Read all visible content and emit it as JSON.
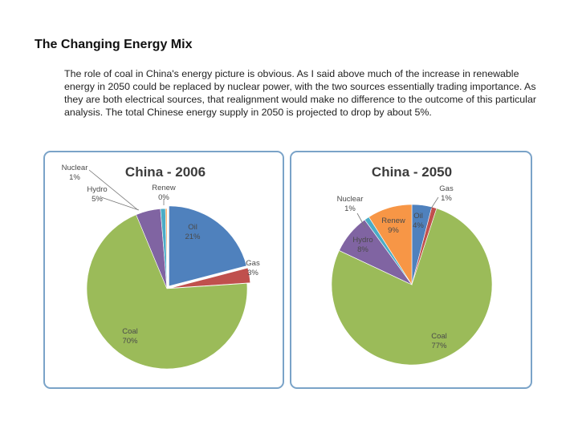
{
  "page": {
    "title": "The Changing Energy Mix",
    "paragraph": "The role of coal in China's energy picture is obvious. As I said above much of the increase in renewable energy in 2050 could be replaced by nuclear power, with the two sources essentially trading importance. As they are both electrical sources, that realignment would make no difference to the outcome of this particular analysis. The total Chinese energy supply in 2050 is projected to drop by about 5%."
  },
  "colors": {
    "Oil": "#4f81bd",
    "Gas": "#c0504d",
    "Coal": "#9bbb59",
    "Hydro": "#8064a2",
    "Nuclear": "#4bacc6",
    "Renew": "#f79646"
  },
  "chart_data": [
    {
      "type": "pie",
      "title": "China - 2006",
      "slices": [
        {
          "name": "Oil",
          "value": 21,
          "label": "21%"
        },
        {
          "name": "Gas",
          "value": 3,
          "label": "3%"
        },
        {
          "name": "Coal",
          "value": 70,
          "label": "70%"
        },
        {
          "name": "Hydro",
          "value": 5,
          "label": "5%"
        },
        {
          "name": "Nuclear",
          "value": 1,
          "label": "1%"
        },
        {
          "name": "Renew",
          "value": 0.3,
          "label": "0%"
        }
      ]
    },
    {
      "type": "pie",
      "title": "China - 2050",
      "slices": [
        {
          "name": "Oil",
          "value": 4,
          "label": "4%"
        },
        {
          "name": "Gas",
          "value": 1,
          "label": "1%"
        },
        {
          "name": "Coal",
          "value": 77,
          "label": "77%"
        },
        {
          "name": "Hydro",
          "value": 8,
          "label": "8%"
        },
        {
          "name": "Nuclear",
          "value": 1,
          "label": "1%"
        },
        {
          "name": "Renew",
          "value": 9,
          "label": "9%"
        }
      ]
    }
  ]
}
